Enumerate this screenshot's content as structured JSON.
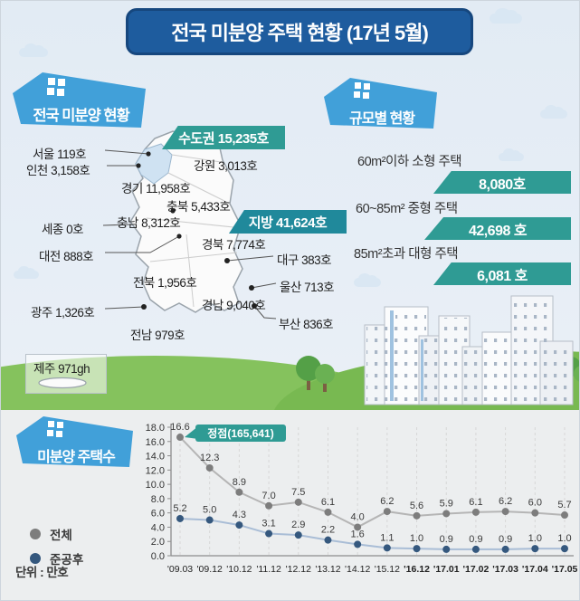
{
  "header": {
    "title": "전국 미분양 주택 현황 (17년 5월)"
  },
  "sections": {
    "national": {
      "badge": "전국 미분양 현황"
    },
    "by_size": {
      "badge": "규모별 현황"
    },
    "chart": {
      "badge": "미분양 주택수"
    }
  },
  "map": {
    "capital_badge": "수도권 15,235호",
    "region_badge": "지방 41,624호",
    "labels": [
      {
        "region": "seoul",
        "text": "서울 119호"
      },
      {
        "region": "incheon",
        "text": "인천 3,158호"
      },
      {
        "region": "gyeonggi",
        "text": "경기 11,958호"
      },
      {
        "region": "gangwon",
        "text": "강원 3,013호"
      },
      {
        "region": "chungbuk",
        "text": "충북 5,433호"
      },
      {
        "region": "chungnam",
        "text": "충남 8,312호"
      },
      {
        "region": "sejong",
        "text": "세종 0호"
      },
      {
        "region": "daejeon",
        "text": "대전 888호"
      },
      {
        "region": "gyeongbuk",
        "text": "경북 7,774호"
      },
      {
        "region": "daegu",
        "text": "대구 383호"
      },
      {
        "region": "jeonbuk",
        "text": "전북 1,956호"
      },
      {
        "region": "ulsan",
        "text": "울산 713호"
      },
      {
        "region": "gyeongnam",
        "text": "경남 9,040호"
      },
      {
        "region": "gwangju",
        "text": "광주 1,326호"
      },
      {
        "region": "busan",
        "text": "부산 836호"
      },
      {
        "region": "jeonnam",
        "text": "전남 979호"
      },
      {
        "region": "jeju",
        "text": "제주 971gh"
      }
    ]
  },
  "sizes": {
    "items": [
      {
        "label": "60m²이하 소형 주택",
        "value": "8,080호"
      },
      {
        "label": "60~85m² 중형 주택",
        "value": "42,698 호"
      },
      {
        "label": "85m²초과 대형 주택",
        "value": "6,081 호"
      }
    ]
  },
  "chart_data": {
    "type": "line",
    "title": "미분양 주택수",
    "x": [
      "'09.03",
      "'09.12",
      "'10.12",
      "'11.12",
      "'12.12",
      "'13.12",
      "'14.12",
      "'15.12",
      "'16.12",
      "'17.01",
      "'17.02",
      "'17.03",
      "'17.04",
      "'17.05"
    ],
    "series": [
      {
        "name": "전체",
        "line_color": "#b5b5b5",
        "dot_color": "#7d7d7d",
        "values": [
          16.6,
          12.3,
          8.9,
          7.0,
          7.5,
          6.1,
          4.0,
          6.2,
          5.6,
          5.9,
          6.1,
          6.2,
          6.0,
          5.7
        ]
      },
      {
        "name": "준공후",
        "line_color": "#a9bdd6",
        "dot_color": "#35587e",
        "values": [
          5.2,
          5.0,
          4.3,
          3.1,
          2.9,
          2.2,
          1.6,
          1.1,
          1.0,
          0.9,
          0.9,
          0.9,
          1.0,
          1.0
        ]
      }
    ],
    "annotation": "정점(165,641)",
    "annotation_color": "#2f9b94",
    "unit_label": "단위 : 만호",
    "ylim": [
      0,
      18
    ],
    "ytick_step": 2,
    "grid": "vertical-dashed",
    "legend_position": "left"
  },
  "colors": {
    "banner_bg": "#1e5c9e",
    "house_bg": "#41a0d9",
    "teal": "#2f9b94",
    "teal_dark": "#20899b"
  }
}
